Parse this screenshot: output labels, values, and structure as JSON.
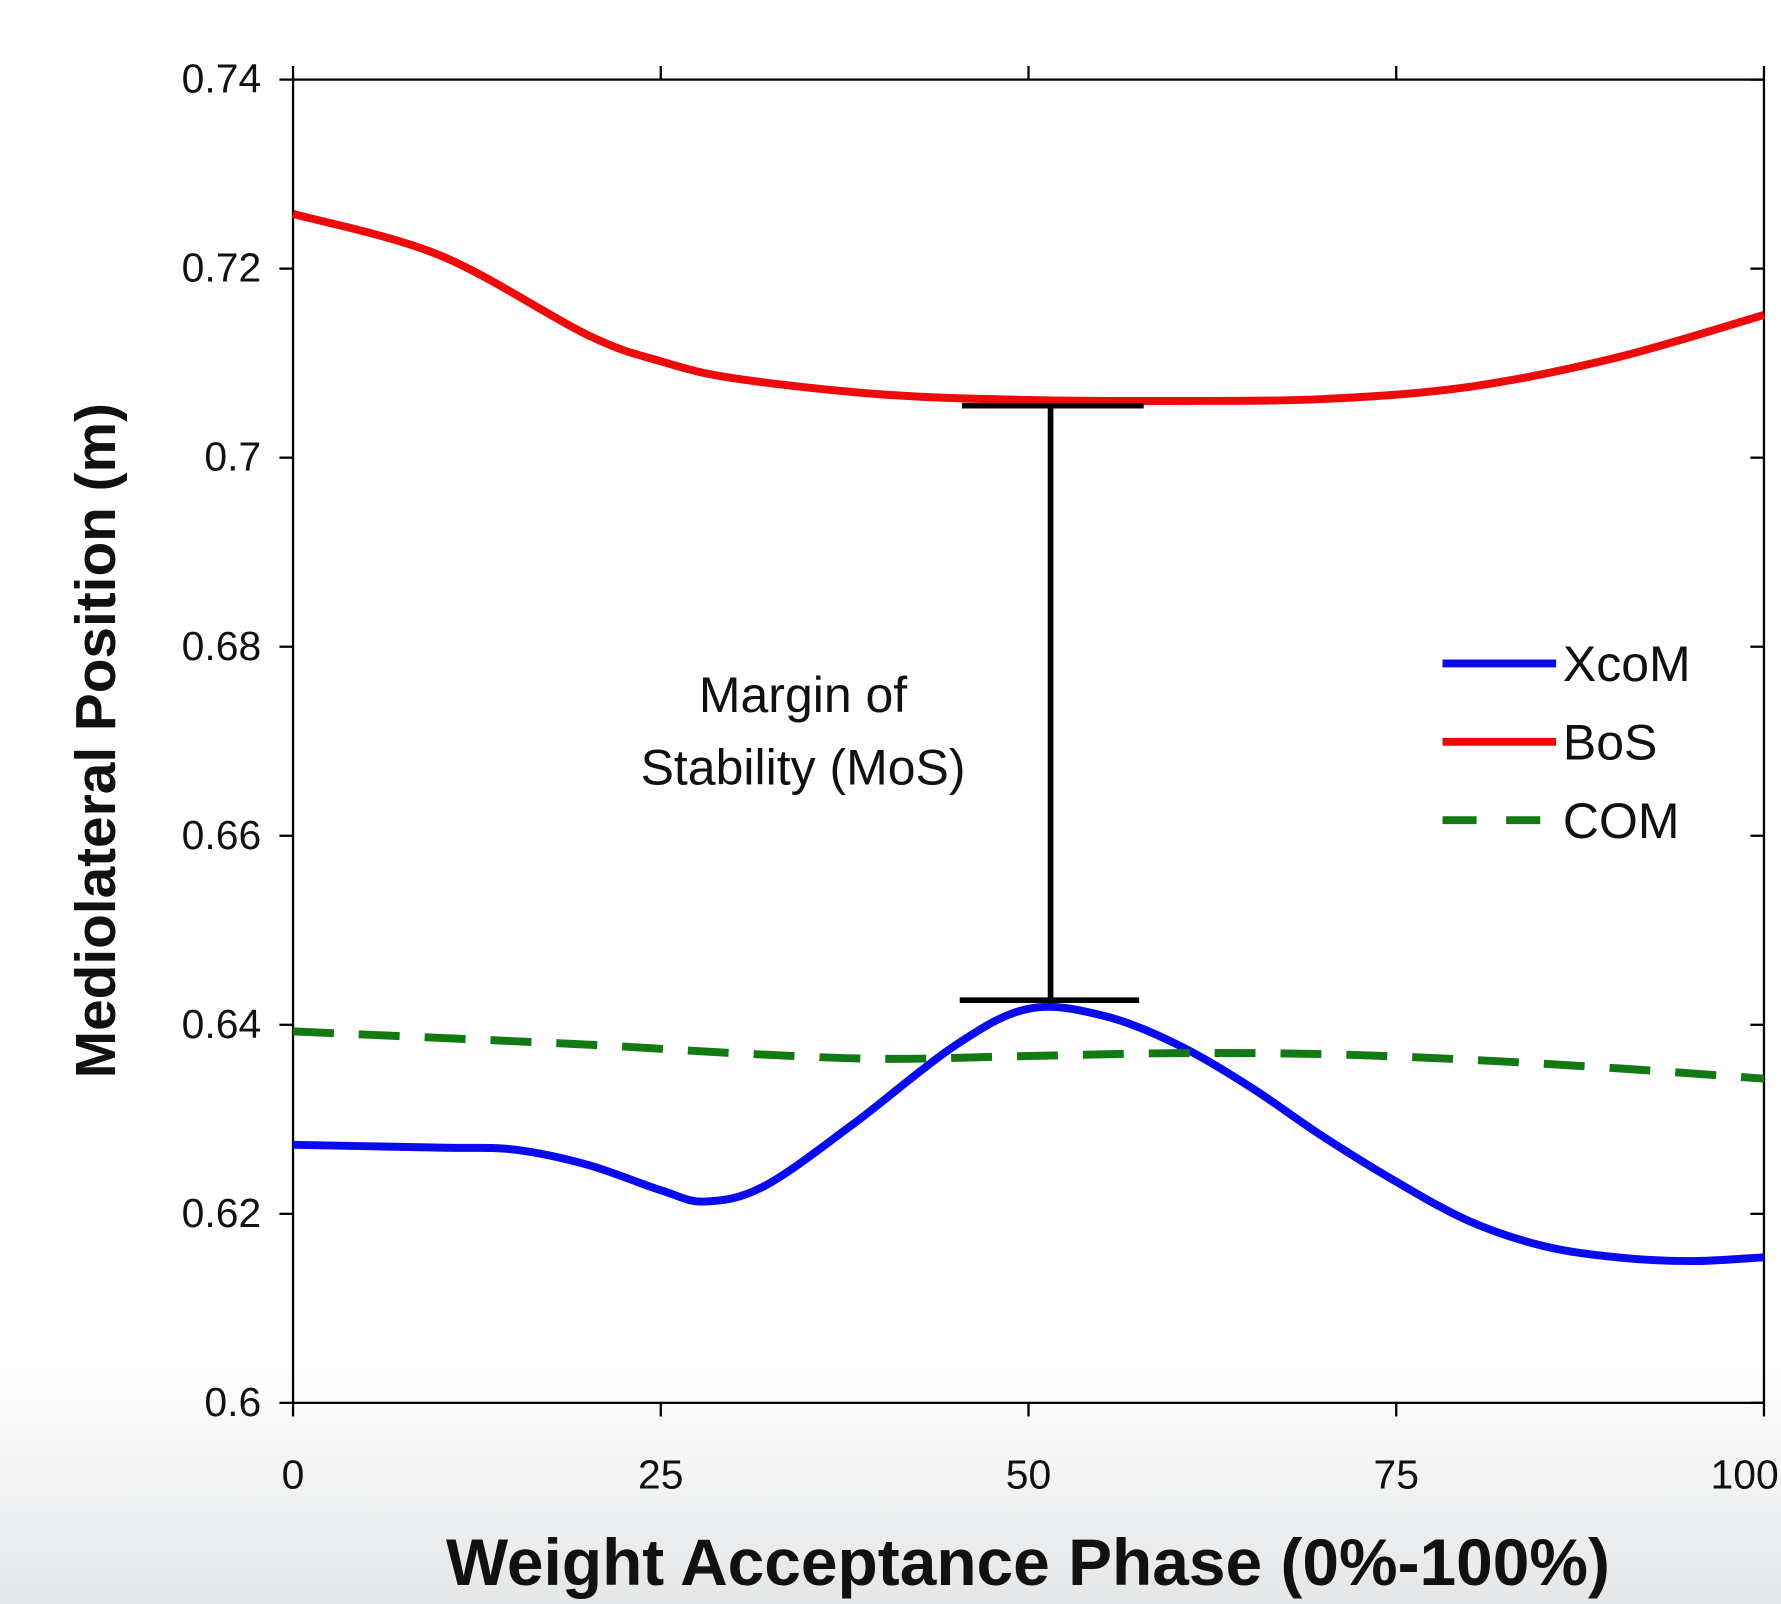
{
  "chart_data": {
    "type": "line",
    "xlabel": "Weight Acceptance Phase (0%-100%)",
    "ylabel": "Mediolateral Position (m)",
    "xlim": [
      0,
      100
    ],
    "ylim": [
      0.6,
      0.74
    ],
    "xticks": [
      0,
      25,
      50,
      75,
      100
    ],
    "yticks": [
      0.6,
      0.62,
      0.64,
      0.66,
      0.68,
      0.7,
      0.72,
      0.74
    ],
    "grid": false,
    "legend": "right",
    "series": [
      {
        "name": "XcoM",
        "color": "#0a0aee",
        "dash": false,
        "x": [
          0,
          10,
          15,
          20,
          25,
          28,
          32,
          38,
          45,
          50,
          55,
          60,
          65,
          70,
          75,
          80,
          85,
          90,
          95,
          100
        ],
        "values": [
          0.6273,
          0.627,
          0.6268,
          0.6252,
          0.6225,
          0.6213,
          0.6229,
          0.6294,
          0.6378,
          0.6417,
          0.641,
          0.638,
          0.6335,
          0.6282,
          0.6234,
          0.6192,
          0.6166,
          0.6154,
          0.615,
          0.6154
        ]
      },
      {
        "name": "BoS",
        "color": "#ee0a0a",
        "dash": false,
        "x": [
          0,
          10,
          20,
          25,
          30,
          40,
          50,
          60,
          70,
          80,
          90,
          100
        ],
        "values": [
          0.7258,
          0.7214,
          0.713,
          0.7102,
          0.7084,
          0.7067,
          0.7061,
          0.706,
          0.7062,
          0.7075,
          0.7106,
          0.7151
        ]
      },
      {
        "name": "COM",
        "color": "#137a13",
        "dash": true,
        "x": [
          0,
          20,
          30,
          40,
          50,
          60,
          70,
          80,
          90,
          100
        ],
        "values": [
          0.6393,
          0.6379,
          0.637,
          0.6364,
          0.6367,
          0.637,
          0.6369,
          0.6363,
          0.6354,
          0.6343
        ]
      }
    ],
    "annotation": {
      "lines": [
        "Margin of",
        "Stability (MoS)"
      ],
      "x": 51.5,
      "y": [
        0.7055,
        0.6426
      ]
    }
  }
}
